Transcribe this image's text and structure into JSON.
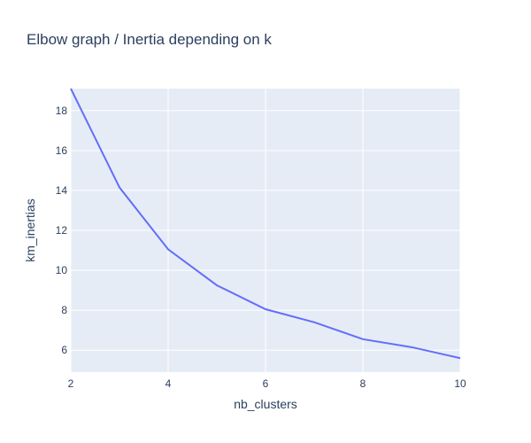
{
  "chart_data": {
    "type": "line",
    "title": "Elbow graph / Inertia depending on k",
    "xlabel": "nb_clusters",
    "ylabel": "km_inertias",
    "x": [
      2,
      3,
      4,
      5,
      6,
      7,
      8,
      9,
      10
    ],
    "series": [
      {
        "values": [
          19.1,
          14.15,
          11.05,
          9.25,
          8.05,
          7.4,
          6.55,
          6.15,
          5.6
        ]
      }
    ],
    "xlim": [
      2,
      10
    ],
    "ylim": [
      4.9,
      19.1
    ],
    "xticks": [
      2,
      4,
      6,
      8,
      10
    ],
    "yticks": [
      6,
      8,
      10,
      12,
      14,
      16,
      18
    ],
    "grid": true,
    "colors": {
      "line": "#636efa",
      "plot_bg": "#e5ecf6",
      "grid": "#ffffff",
      "text": "#2a3f5f"
    }
  }
}
